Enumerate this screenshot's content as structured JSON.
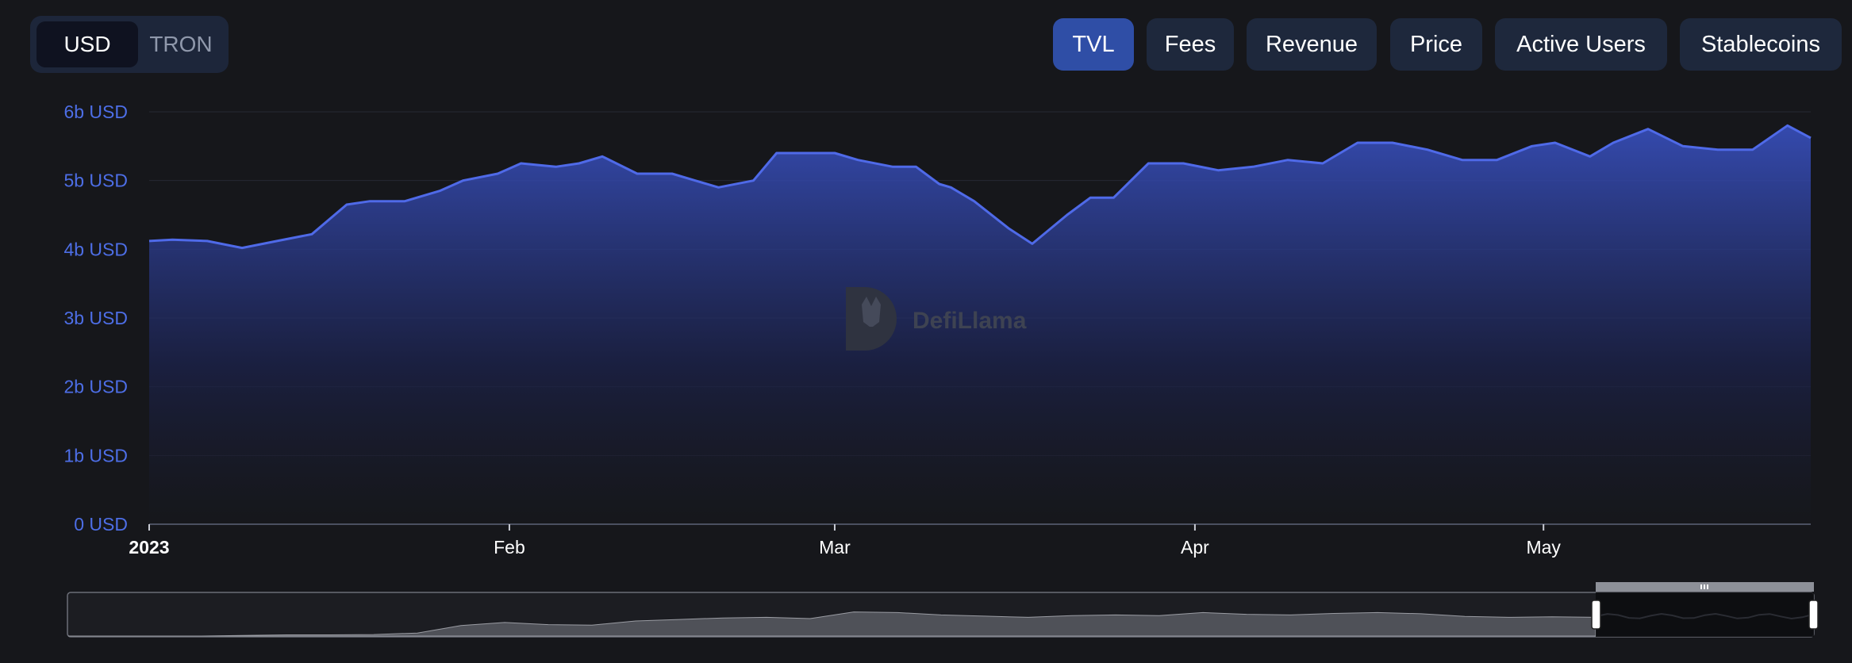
{
  "currency_toggle": {
    "options": [
      "USD",
      "TRON"
    ],
    "selected": "USD"
  },
  "metrics": {
    "tabs": [
      "TVL",
      "Fees",
      "Revenue",
      "Price",
      "Active Users",
      "Stablecoins"
    ],
    "active": "TVL"
  },
  "watermark": "DefiLlama",
  "colors": {
    "line": "#4f6ae8",
    "accent": "#2f4ea6",
    "background": "#16171b",
    "axis_label": "#4d6ee6"
  },
  "chart_data": {
    "type": "area",
    "unit": "USD",
    "y_ticks": [
      "0 USD",
      "1b USD",
      "2b USD",
      "3b USD",
      "4b USD",
      "5b USD",
      "6b USD"
    ],
    "ylim": [
      0,
      6
    ],
    "x_ticks": [
      {
        "label": "2023",
        "day": 0,
        "bold": true
      },
      {
        "label": "Feb",
        "day": 31
      },
      {
        "label": "Mar",
        "day": 59
      },
      {
        "label": "Apr",
        "day": 90
      },
      {
        "label": "May",
        "day": 120
      }
    ],
    "x": [
      "2023-01-01",
      "2023-01-03",
      "2023-01-06",
      "2023-01-09",
      "2023-01-12",
      "2023-01-15",
      "2023-01-18",
      "2023-01-20",
      "2023-01-23",
      "2023-01-26",
      "2023-01-28",
      "2023-01-31",
      "2023-02-02",
      "2023-02-05",
      "2023-02-07",
      "2023-02-09",
      "2023-02-12",
      "2023-02-15",
      "2023-02-17",
      "2023-02-19",
      "2023-02-22",
      "2023-02-24",
      "2023-02-27",
      "2023-03-01",
      "2023-03-03",
      "2023-03-06",
      "2023-03-08",
      "2023-03-10",
      "2023-03-11",
      "2023-03-13",
      "2023-03-16",
      "2023-03-18",
      "2023-03-21",
      "2023-03-23",
      "2023-03-25",
      "2023-03-28",
      "2023-03-31",
      "2023-04-03",
      "2023-04-06",
      "2023-04-09",
      "2023-04-12",
      "2023-04-15",
      "2023-04-18",
      "2023-04-21",
      "2023-04-24",
      "2023-04-27",
      "2023-04-30",
      "2023-05-02",
      "2023-05-05",
      "2023-05-07",
      "2023-05-10",
      "2023-05-13",
      "2023-05-16",
      "2023-05-19",
      "2023-05-22",
      "2023-05-24"
    ],
    "series": [
      {
        "values": [
          4.12,
          4.14,
          4.12,
          4.02,
          4.12,
          4.22,
          4.65,
          4.7,
          4.7,
          4.85,
          5.0,
          5.1,
          5.25,
          5.2,
          5.25,
          5.35,
          5.1,
          5.1,
          5.0,
          4.9,
          5.0,
          5.4,
          5.4,
          5.4,
          5.3,
          5.2,
          5.2,
          4.95,
          4.9,
          4.7,
          4.3,
          4.08,
          4.5,
          4.75,
          4.75,
          5.25,
          5.25,
          5.15,
          5.2,
          5.3,
          5.25,
          5.55,
          5.55,
          5.45,
          5.3,
          5.3,
          5.5,
          5.55,
          5.35,
          5.55,
          5.75,
          5.5,
          5.45,
          5.45,
          5.8,
          5.62
        ]
      }
    ]
  }
}
